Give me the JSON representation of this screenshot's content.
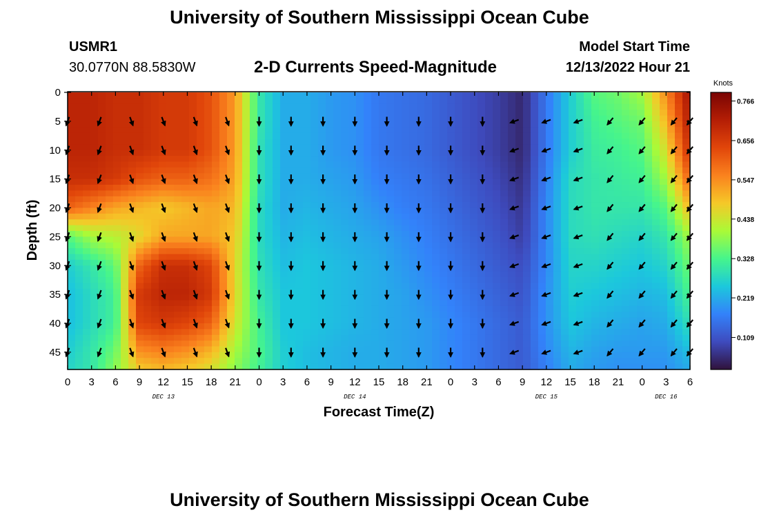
{
  "page": {
    "title": "University of Southern Mississippi Ocean Cube",
    "station": "USMR1",
    "coordinates": "30.0770N  88.5830W",
    "chart_title": "2-D Currents Speed-Magnitude",
    "model_start_label": "Model Start Time",
    "model_start_value": "12/13/2022 Hour 21",
    "bottom_title": "University of Southern Mississippi Ocean Cube"
  },
  "chart_data": {
    "type": "heatmap",
    "title": "2-D Currents Speed-Magnitude",
    "xlabel": "Forecast Time(Z)",
    "ylabel": "Depth (ft)",
    "xlim": [
      0,
      78
    ],
    "ylim": [
      48,
      0
    ],
    "x_tick_labels": [
      "0",
      "3",
      "6",
      "9",
      "12",
      "15",
      "18",
      "21",
      "0",
      "3",
      "6",
      "9",
      "12",
      "15",
      "18",
      "21",
      "0",
      "3",
      "6",
      "9",
      "12",
      "15",
      "18",
      "21",
      "0",
      "3",
      "6"
    ],
    "date_labels": [
      {
        "label": "DEC 13",
        "at_hour": 12
      },
      {
        "label": "DEC 14",
        "at_hour": 36
      },
      {
        "label": "DEC 15",
        "at_hour": 60
      },
      {
        "label": "DEC 16",
        "at_hour": 75
      }
    ],
    "y_ticks": [
      0,
      5,
      10,
      15,
      20,
      25,
      30,
      35,
      40,
      45
    ],
    "colorbar": {
      "title": "Knots",
      "ticks": [
        "0.109",
        "0.219",
        "0.328",
        "0.438",
        "0.547",
        "0.656",
        "0.766"
      ],
      "tick_values": [
        0.109,
        0.219,
        0.328,
        0.438,
        0.547,
        0.656,
        0.766
      ],
      "range": [
        0.02,
        0.79
      ],
      "colormap": "turbo"
    },
    "speed_grid": {
      "hours": [
        0,
        3,
        6,
        9,
        12,
        15,
        18,
        21,
        24,
        27,
        30,
        33,
        36,
        39,
        42,
        45,
        48,
        51,
        54,
        57,
        60,
        63,
        66,
        69,
        72,
        75,
        78
      ],
      "depths": [
        0,
        5,
        10,
        15,
        20,
        25,
        30,
        35,
        40,
        45,
        48
      ],
      "values": [
        [
          0.7,
          0.7,
          0.68,
          0.68,
          0.66,
          0.66,
          0.62,
          0.53,
          0.3,
          0.22,
          0.22,
          0.2,
          0.19,
          0.16,
          0.15,
          0.14,
          0.12,
          0.1,
          0.08,
          0.05,
          0.16,
          0.26,
          0.34,
          0.36,
          0.4,
          0.55,
          0.74
        ],
        [
          0.7,
          0.7,
          0.68,
          0.68,
          0.66,
          0.66,
          0.62,
          0.53,
          0.3,
          0.22,
          0.22,
          0.2,
          0.19,
          0.16,
          0.15,
          0.14,
          0.12,
          0.1,
          0.08,
          0.05,
          0.16,
          0.26,
          0.32,
          0.34,
          0.36,
          0.5,
          0.72
        ],
        [
          0.7,
          0.7,
          0.68,
          0.68,
          0.66,
          0.66,
          0.62,
          0.53,
          0.29,
          0.22,
          0.22,
          0.2,
          0.19,
          0.16,
          0.15,
          0.14,
          0.12,
          0.1,
          0.08,
          0.05,
          0.16,
          0.26,
          0.31,
          0.32,
          0.34,
          0.45,
          0.68
        ],
        [
          0.68,
          0.68,
          0.66,
          0.62,
          0.6,
          0.6,
          0.58,
          0.52,
          0.29,
          0.22,
          0.22,
          0.21,
          0.2,
          0.17,
          0.16,
          0.15,
          0.13,
          0.11,
          0.09,
          0.06,
          0.17,
          0.28,
          0.3,
          0.31,
          0.32,
          0.4,
          0.6
        ],
        [
          0.6,
          0.56,
          0.52,
          0.5,
          0.48,
          0.5,
          0.52,
          0.5,
          0.28,
          0.22,
          0.23,
          0.22,
          0.21,
          0.19,
          0.17,
          0.16,
          0.14,
          0.12,
          0.1,
          0.07,
          0.18,
          0.28,
          0.3,
          0.3,
          0.3,
          0.34,
          0.5
        ],
        [
          0.34,
          0.4,
          0.42,
          0.46,
          0.52,
          0.52,
          0.52,
          0.48,
          0.28,
          0.23,
          0.24,
          0.23,
          0.22,
          0.21,
          0.19,
          0.17,
          0.15,
          0.13,
          0.11,
          0.08,
          0.18,
          0.28,
          0.29,
          0.28,
          0.27,
          0.3,
          0.4
        ],
        [
          0.26,
          0.3,
          0.35,
          0.6,
          0.68,
          0.68,
          0.64,
          0.46,
          0.29,
          0.24,
          0.25,
          0.24,
          0.23,
          0.22,
          0.2,
          0.18,
          0.16,
          0.14,
          0.12,
          0.1,
          0.18,
          0.27,
          0.27,
          0.26,
          0.25,
          0.27,
          0.36
        ],
        [
          0.24,
          0.28,
          0.32,
          0.66,
          0.7,
          0.7,
          0.66,
          0.46,
          0.3,
          0.25,
          0.25,
          0.24,
          0.23,
          0.22,
          0.21,
          0.19,
          0.17,
          0.15,
          0.13,
          0.11,
          0.19,
          0.26,
          0.25,
          0.24,
          0.23,
          0.24,
          0.33
        ],
        [
          0.24,
          0.28,
          0.32,
          0.64,
          0.66,
          0.64,
          0.6,
          0.44,
          0.32,
          0.25,
          0.25,
          0.24,
          0.23,
          0.22,
          0.21,
          0.2,
          0.18,
          0.16,
          0.14,
          0.12,
          0.19,
          0.25,
          0.23,
          0.22,
          0.21,
          0.22,
          0.29
        ],
        [
          0.26,
          0.3,
          0.36,
          0.54,
          0.56,
          0.54,
          0.5,
          0.4,
          0.33,
          0.26,
          0.24,
          0.23,
          0.22,
          0.22,
          0.21,
          0.2,
          0.18,
          0.16,
          0.14,
          0.12,
          0.18,
          0.23,
          0.21,
          0.2,
          0.2,
          0.2,
          0.24
        ],
        [
          0.27,
          0.3,
          0.38,
          0.48,
          0.5,
          0.48,
          0.45,
          0.38,
          0.32,
          0.26,
          0.24,
          0.23,
          0.22,
          0.22,
          0.21,
          0.2,
          0.18,
          0.16,
          0.14,
          0.12,
          0.17,
          0.22,
          0.2,
          0.19,
          0.19,
          0.19,
          0.22
        ]
      ]
    },
    "arrows": {
      "hours": [
        0,
        4,
        8,
        12,
        16,
        20,
        24,
        28,
        32,
        36,
        40,
        44,
        48,
        52,
        56,
        60,
        64,
        68,
        72,
        76,
        78
      ],
      "depths": [
        5,
        10,
        15,
        20,
        25,
        30,
        35,
        40,
        45
      ],
      "direction_deg_by_segment": [
        {
          "from_hour": 0,
          "to_hour": 8,
          "deg": 200
        },
        {
          "from_hour": 8,
          "to_hour": 24,
          "deg": 160
        },
        {
          "from_hour": 24,
          "to_hour": 56,
          "deg": 180
        },
        {
          "from_hour": 56,
          "to_hour": 66,
          "deg": 250
        },
        {
          "from_hour": 66,
          "to_hour": 78,
          "deg": 220
        }
      ]
    }
  }
}
